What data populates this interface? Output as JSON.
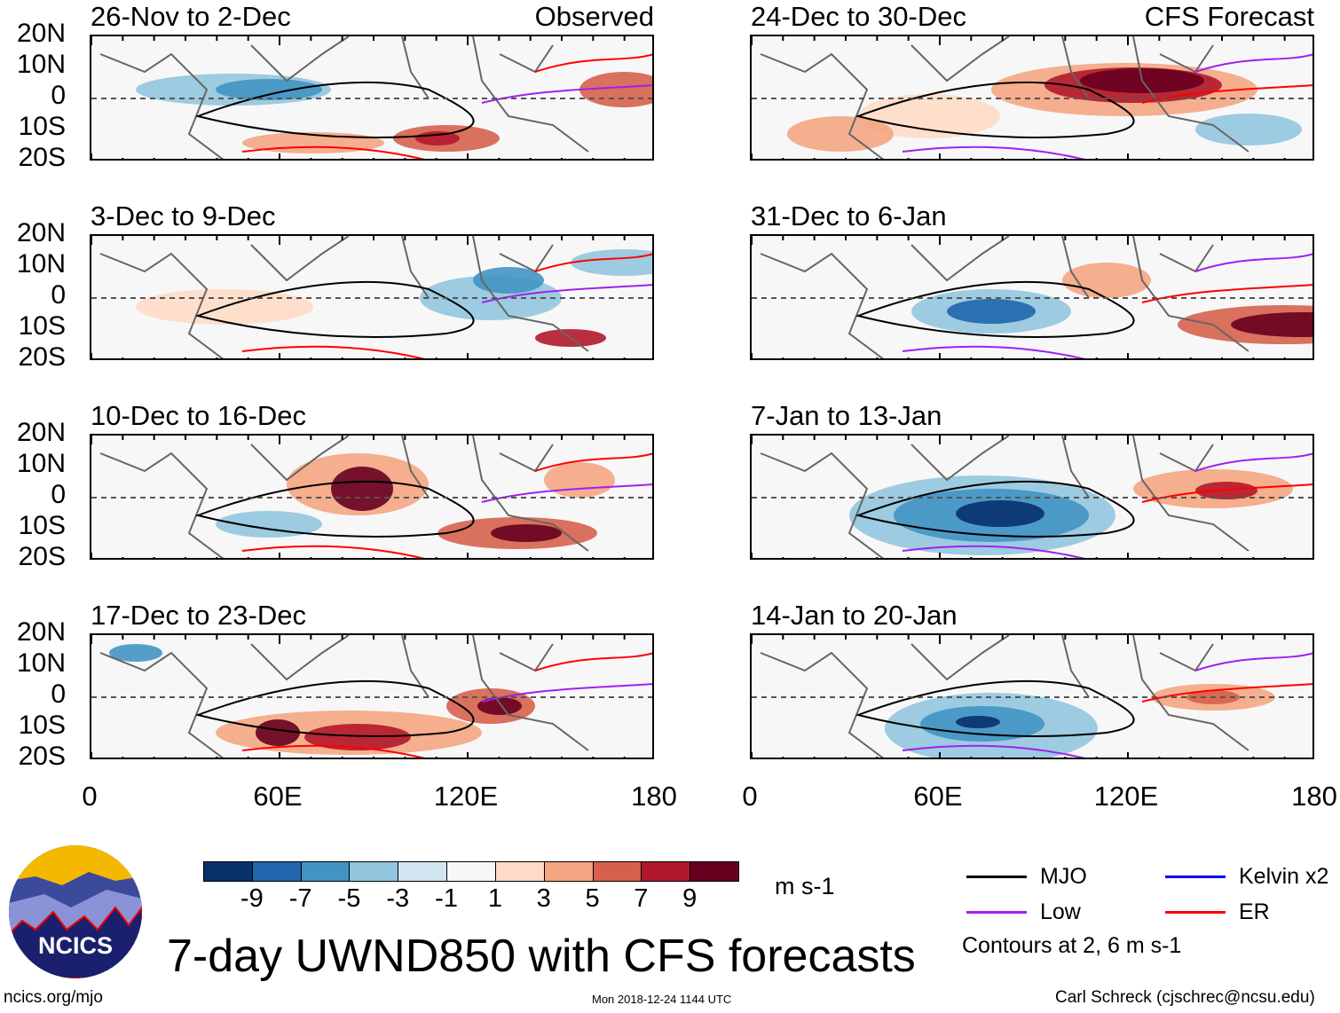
{
  "panels": [
    {
      "title": "26-Nov to 2-Dec",
      "label": "Observed"
    },
    {
      "title": "24-Dec to 30-Dec",
      "label": "CFS Forecast"
    },
    {
      "title": "3-Dec to 9-Dec",
      "label": ""
    },
    {
      "title": "31-Dec to 6-Jan",
      "label": ""
    },
    {
      "title": "10-Dec to 16-Dec",
      "label": ""
    },
    {
      "title": "7-Jan to 13-Jan",
      "label": ""
    },
    {
      "title": "17-Dec to 23-Dec",
      "label": ""
    },
    {
      "title": "14-Jan to 20-Jan",
      "label": ""
    }
  ],
  "lat_labels": [
    "20N",
    "10N",
    "0",
    "10S",
    "20S"
  ],
  "lon_labels": [
    "0",
    "60E",
    "120E",
    "180"
  ],
  "colorbar": {
    "colors": [
      "#08306b",
      "#2166ac",
      "#4393c3",
      "#92c5de",
      "#d1e5f0",
      "#f7f7f7",
      "#fddbc7",
      "#f4a582",
      "#d6604d",
      "#b2182b",
      "#67001f"
    ],
    "labels": [
      "-9",
      "-7",
      "-5",
      "-3",
      "-1",
      "1",
      "3",
      "5",
      "7",
      "9"
    ],
    "units": "m s-1"
  },
  "legend": {
    "items": [
      {
        "label": "MJO",
        "color": "#000000"
      },
      {
        "label": "Kelvin x2",
        "color": "#0000ff"
      },
      {
        "label": "Low",
        "color": "#a020f0"
      },
      {
        "label": "ER",
        "color": "#ff0000"
      }
    ],
    "note": "Contours at 2, 6 m s-1"
  },
  "title": "7-day UWND850 with CFS forecasts",
  "logo_text": "NCICS",
  "footer": {
    "url": "ncics.org/mjo",
    "timestamp": "Mon 2018-12-24 1144 UTC",
    "credit": "Carl Schreck (cjschrec@ncsu.edu)"
  }
}
